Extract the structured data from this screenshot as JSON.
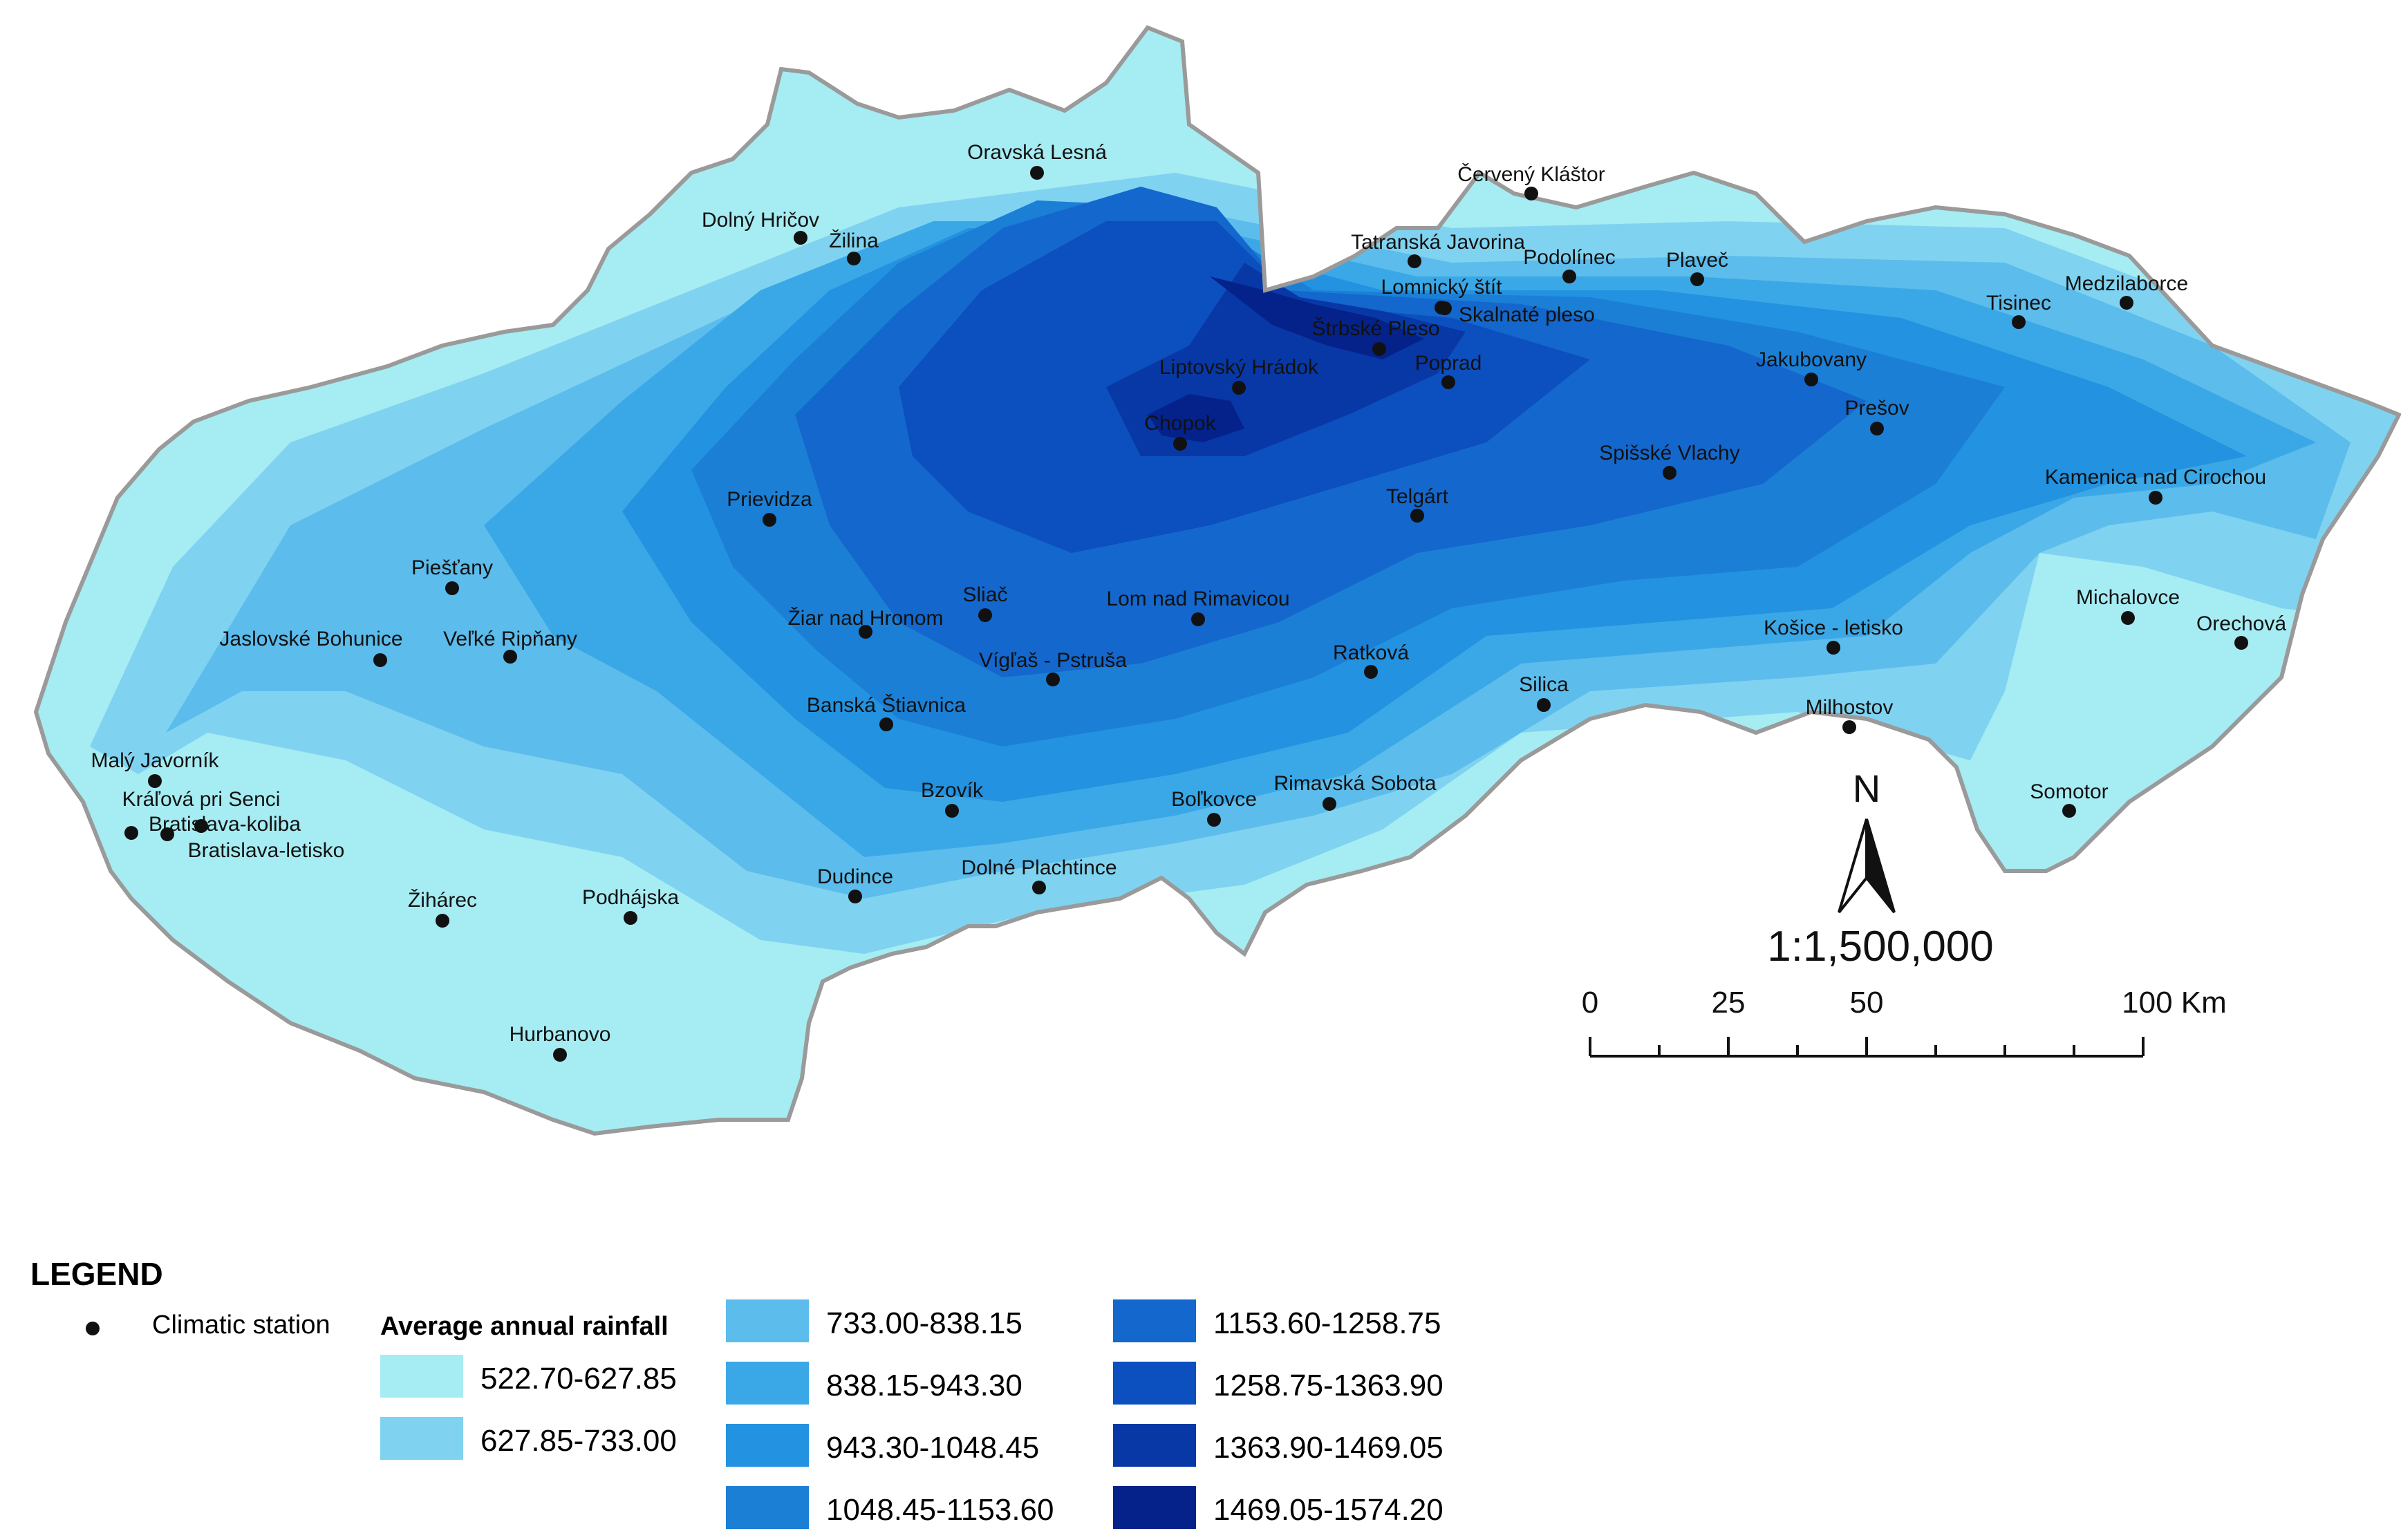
{
  "legend": {
    "title": "LEGEND",
    "station_label": "Climatic station",
    "rainfall_title": "Average annual rainfall",
    "classes": [
      {
        "label": "522.70-627.85",
        "color": "#a6ecf3"
      },
      {
        "label": "627.85-733.00",
        "color": "#7fd3f0"
      },
      {
        "label": "733.00-838.15",
        "color": "#5cbcec"
      },
      {
        "label": "838.15-943.30",
        "color": "#3aa8e6"
      },
      {
        "label": "943.30-1048.45",
        "color": "#2392e0"
      },
      {
        "label": "1048.45-1153.60",
        "color": "#1b7fd6"
      },
      {
        "label": "1153.60-1258.75",
        "color": "#1467cc"
      },
      {
        "label": "1258.75-1363.90",
        "color": "#0c4fbe"
      },
      {
        "label": "1363.90-1469.05",
        "color": "#0838a6"
      },
      {
        "label": "1469.05-1574.20",
        "color": "#04228a"
      }
    ]
  },
  "map": {
    "scale_ratio": "1:1,500,000",
    "north_label": "N",
    "scale_ticks": [
      "0",
      "25",
      "50",
      "100 Km"
    ],
    "border_color": "#9a9a9a",
    "stations": [
      {
        "name": "Oravská Lesná",
        "data_name": "station-oravska-lesna"
      },
      {
        "name": "Červený Kláštor",
        "data_name": "station-cerveny-klastor"
      },
      {
        "name": "Dolný Hričov",
        "data_name": "station-dolny-hricov"
      },
      {
        "name": "Žilina",
        "data_name": "station-zilina"
      },
      {
        "name": "Tatranská Javorina",
        "data_name": "station-tatranska-javorina"
      },
      {
        "name": "Podolínec",
        "data_name": "station-podolinec"
      },
      {
        "name": "Plaveč",
        "data_name": "station-plavec"
      },
      {
        "name": "Lomnický štít",
        "data_name": "station-lomnicky-stit"
      },
      {
        "name": "Skalnaté pleso",
        "data_name": "station-skalnate-pleso"
      },
      {
        "name": "Štrbské Pleso",
        "data_name": "station-strbske-pleso"
      },
      {
        "name": "Medzilaborce",
        "data_name": "station-medzilaborce"
      },
      {
        "name": "Tisinec",
        "data_name": "station-tisinec"
      },
      {
        "name": "Liptovský Hrádok",
        "data_name": "station-liptovsky-hradok"
      },
      {
        "name": "Poprad",
        "data_name": "station-poprad"
      },
      {
        "name": "Jakubovany",
        "data_name": "station-jakubovany"
      },
      {
        "name": "Chopok",
        "data_name": "station-chopok"
      },
      {
        "name": "Prešov",
        "data_name": "station-presov"
      },
      {
        "name": "Spišské Vlachy",
        "data_name": "station-spisske-vlachy"
      },
      {
        "name": "Kamenica nad Cirochou",
        "data_name": "station-kamenica-nad-cirochou"
      },
      {
        "name": "Prievidza",
        "data_name": "station-prievidza"
      },
      {
        "name": "Telgárt",
        "data_name": "station-telgart"
      },
      {
        "name": "Piešťany",
        "data_name": "station-piestany"
      },
      {
        "name": "Sliač",
        "data_name": "station-sliac"
      },
      {
        "name": "Lom nad Rimavicou",
        "data_name": "station-lom-nad-rimavicou"
      },
      {
        "name": "Michalovce",
        "data_name": "station-michalovce"
      },
      {
        "name": "Žiar nad Hronom",
        "data_name": "station-ziar-nad-hronom"
      },
      {
        "name": "Orechová",
        "data_name": "station-orechova"
      },
      {
        "name": "Jaslovské Bohunice",
        "data_name": "station-jaslovske-bohunice"
      },
      {
        "name": "Veľké Ripňany",
        "data_name": "station-velke-ripnany"
      },
      {
        "name": "Košice - letisko",
        "data_name": "station-kosice-letisko"
      },
      {
        "name": "Vígľaš - Pstruša",
        "data_name": "station-viglas-pstrusa"
      },
      {
        "name": "Ratková",
        "data_name": "station-ratkova"
      },
      {
        "name": "Silica",
        "data_name": "station-silica"
      },
      {
        "name": "Banská Štiavnica",
        "data_name": "station-banska-stiavnica"
      },
      {
        "name": "Milhostov",
        "data_name": "station-milhostov"
      },
      {
        "name": "Malý Javorník",
        "data_name": "station-maly-javornik"
      },
      {
        "name": "Bzovík",
        "data_name": "station-bzovik"
      },
      {
        "name": "Rimavská Sobota",
        "data_name": "station-rimavska-sobota"
      },
      {
        "name": "Kráľová pri Senci",
        "data_name": "station-kralova-pri-senci"
      },
      {
        "name": "Boľkovce",
        "data_name": "station-bolkovce"
      },
      {
        "name": "Somotor",
        "data_name": "station-somotor"
      },
      {
        "name": "Bratislava-koliba",
        "data_name": "station-bratislava-koliba"
      },
      {
        "name": "Bratislava-letisko",
        "data_name": "station-bratislava-letisko"
      },
      {
        "name": "Dudince",
        "data_name": "station-dudince"
      },
      {
        "name": "Dolné Plachtince",
        "data_name": "station-dolne-plachtince"
      },
      {
        "name": "Žihárec",
        "data_name": "station-ziharec"
      },
      {
        "name": "Podhájska",
        "data_name": "station-podhajska"
      },
      {
        "name": "Hurbanovo",
        "data_name": "station-hurbanovo"
      }
    ]
  }
}
